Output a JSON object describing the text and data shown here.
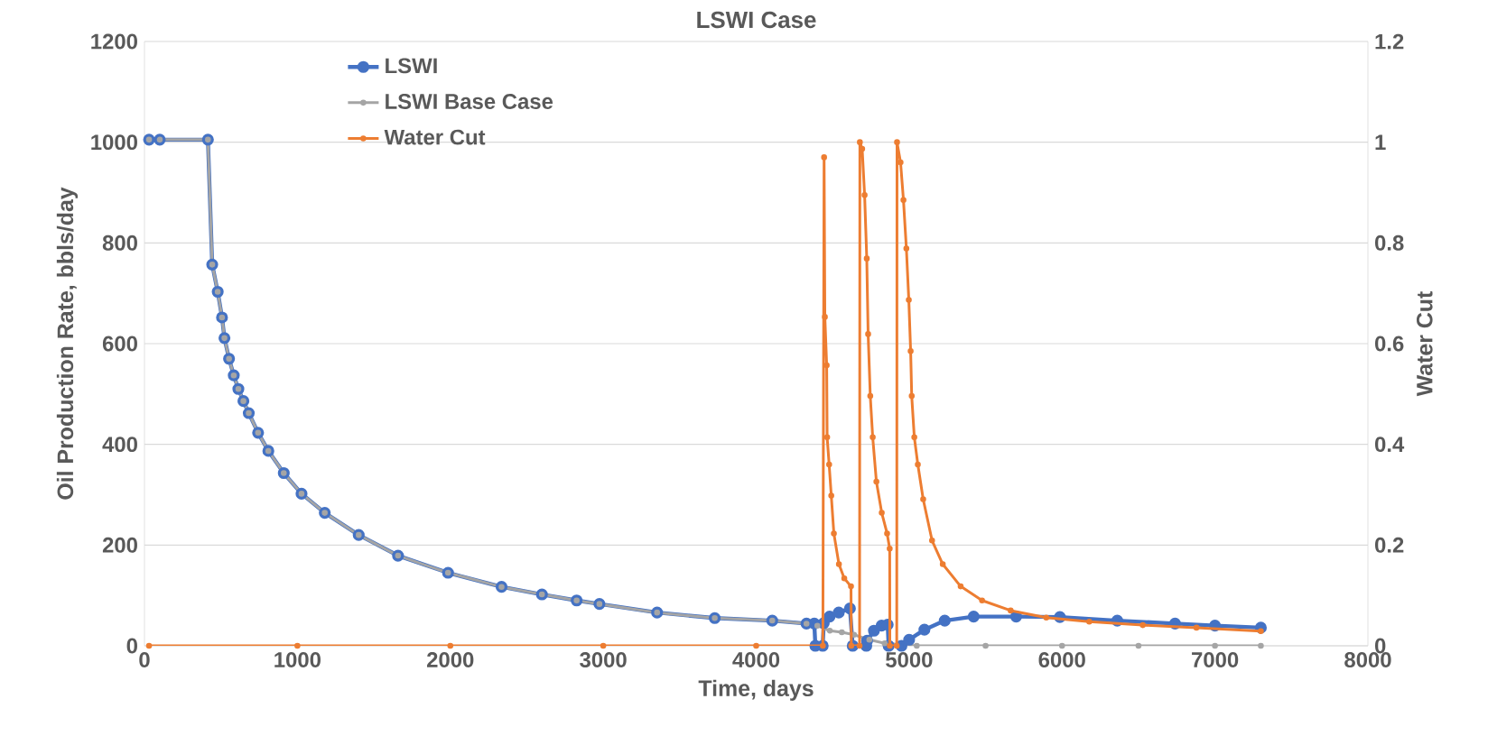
{
  "chart_data": {
    "type": "line",
    "title": "LSWI Case",
    "xlabel": "Time, days",
    "ylabel": "Oil Production Rate, bbls/day",
    "y2label": "Water Cut",
    "xlim": [
      0,
      8000
    ],
    "xticks": [
      0,
      1000,
      2000,
      3000,
      4000,
      5000,
      6000,
      7000,
      8000
    ],
    "ylim": [
      0,
      1200
    ],
    "yticks": [
      0,
      200,
      400,
      600,
      800,
      1000,
      1200
    ],
    "y2lim": [
      0,
      1.2
    ],
    "y2ticks": [
      0,
      0.2,
      0.4,
      0.6,
      0.8,
      1,
      1.2
    ],
    "grid": "y",
    "legend": "top left",
    "line_style": "solid",
    "series": [
      {
        "name": "LSWI",
        "color": "#4472c4",
        "marker": "circle",
        "x": [
          30,
          100,
          415,
          443,
          479,
          507,
          523,
          553,
          584,
          614,
          647,
          682,
          743,
          810,
          911,
          1027,
          1179,
          1401,
          1658,
          1985,
          2335,
          2599,
          2826,
          2975,
          3352,
          3729,
          4105,
          4329,
          4380,
          4387,
          4435,
          4442,
          4480,
          4540,
          4613,
          4631,
          4720,
          4725,
          4770,
          4820,
          4860,
          4866,
          4950,
          5000,
          5100,
          5233,
          5422,
          5700,
          5986,
          6361,
          6739,
          7000,
          7300
        ],
        "values": [
          1005,
          1005,
          1005,
          757,
          703,
          652,
          611,
          570,
          537,
          510,
          486,
          462,
          423,
          387,
          343,
          302,
          264,
          220,
          179,
          145,
          117,
          102,
          90,
          83,
          66,
          55,
          50,
          44,
          44,
          0,
          0,
          45,
          58,
          66,
          74,
          0,
          0,
          10,
          30,
          40,
          42,
          0,
          0,
          12,
          32,
          50,
          58,
          58,
          57,
          50,
          44,
          40,
          36
        ]
      },
      {
        "name": "LSWI Base Case",
        "color": "#a5a5a5",
        "marker": "circle",
        "x": [
          30,
          100,
          415,
          443,
          479,
          507,
          523,
          553,
          584,
          614,
          647,
          682,
          743,
          810,
          911,
          1027,
          1179,
          1401,
          1658,
          1985,
          2335,
          2599,
          2826,
          2975,
          3352,
          3729,
          4105,
          4329,
          4400,
          4481,
          4560,
          4640,
          4740,
          4840,
          4930,
          5050,
          5500,
          6000,
          6500,
          7000,
          7300
        ],
        "values": [
          1005,
          1005,
          1005,
          757,
          703,
          652,
          611,
          570,
          537,
          510,
          486,
          462,
          423,
          387,
          343,
          302,
          264,
          220,
          179,
          145,
          117,
          102,
          90,
          83,
          66,
          55,
          50,
          44,
          40,
          30,
          27,
          22,
          12,
          5,
          null,
          0,
          0,
          0,
          0,
          0,
          0
        ]
      },
      {
        "name": "Water Cut",
        "color": "#ed7d31",
        "marker": "circle",
        "axis": "y2",
        "x": [
          30,
          1000,
          2000,
          3000,
          4000,
          4436,
          4444,
          4449,
          4461,
          4464,
          4477,
          4491,
          4508,
          4541,
          4576,
          4620,
          4622,
          4676,
          4678,
          4693,
          4709,
          4723,
          4732,
          4746,
          4762,
          4786,
          4821,
          4856,
          4873,
          4874,
          4919,
          4921,
          4944,
          4963,
          4982,
          4998,
          5010,
          5017,
          5034,
          5057,
          5092,
          5150,
          5220,
          5337,
          5477,
          5664,
          5897,
          6178,
          6528,
          6879,
          7300
        ],
        "values": [
          0,
          0,
          0,
          0,
          0,
          0,
          0.97,
          0.653,
          0.557,
          0.414,
          0.36,
          0.298,
          0.223,
          0.162,
          0.134,
          0.118,
          0,
          0,
          1,
          0.987,
          0.895,
          0.769,
          0.619,
          0.496,
          0.414,
          0.326,
          0.264,
          0.223,
          0.193,
          0,
          0,
          1,
          0.96,
          0.885,
          0.789,
          0.687,
          0.585,
          0.496,
          0.414,
          0.36,
          0.291,
          0.209,
          0.162,
          0.118,
          0.09,
          0.07,
          0.056,
          0.048,
          0.041,
          0.036,
          0.029
        ]
      }
    ]
  }
}
